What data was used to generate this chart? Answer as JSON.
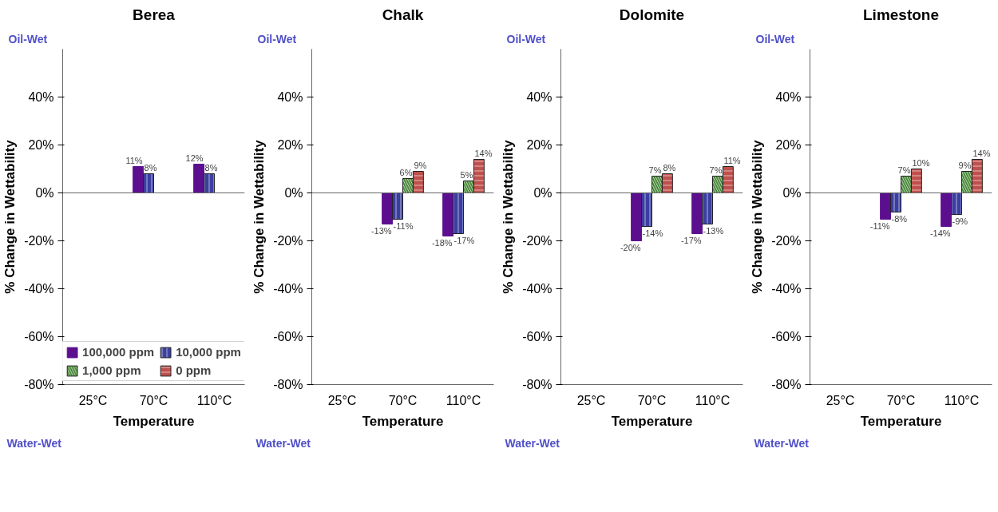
{
  "chart_data": [
    {
      "type": "bar",
      "title": "Berea",
      "xlabel": "Temperature",
      "ylabel": "% Change in Wettability",
      "categories": [
        "25°C",
        "70°C",
        "110°C"
      ],
      "series": [
        {
          "name": "100,000 ppm",
          "color": "#5b0f8f",
          "values": [
            null,
            11,
            12
          ],
          "value_labels": [
            null,
            "11%",
            "12%"
          ]
        },
        {
          "name": "10,000 ppm",
          "color": "#3b3fa0",
          "values": [
            null,
            8,
            8
          ],
          "value_labels": [
            null,
            "8%",
            "8%"
          ]
        },
        {
          "name": "1,000 ppm",
          "color": "#4a8a3a",
          "values": [
            null,
            null,
            null
          ]
        },
        {
          "name": "0 ppm",
          "color": "#c0504d",
          "values": [
            null,
            null,
            null
          ]
        }
      ],
      "ylim": [
        -80,
        60
      ],
      "yticks": [
        {
          "value": -80,
          "label": "-80%"
        },
        {
          "value": -60,
          "label": "-60%"
        },
        {
          "value": -40,
          "label": "-40%"
        },
        {
          "value": -20,
          "label": "-20%"
        },
        {
          "value": 0,
          "label": "0%"
        },
        {
          "value": 20,
          "label": "20%"
        },
        {
          "value": 40,
          "label": "40%"
        }
      ],
      "ref_lines": [
        {
          "axis": "y",
          "value": 0
        }
      ],
      "annotations": [
        "Oil-Wet",
        "Water-Wet"
      ],
      "legend": "bottom"
    },
    {
      "type": "bar",
      "title": "Chalk",
      "xlabel": "Temperature",
      "ylabel": "% Change in Wettability",
      "categories": [
        "25°C",
        "70°C",
        "110°C"
      ],
      "series": [
        {
          "color": "#5b0f8f",
          "values": [
            null,
            -13,
            -18
          ],
          "value_labels": [
            null,
            "-13%",
            "-18%"
          ]
        },
        {
          "color": "#3b3fa0",
          "values": [
            null,
            -11,
            -17
          ],
          "value_labels": [
            null,
            "-11%",
            "-17%"
          ]
        },
        {
          "color": "#4a8a3a",
          "values": [
            null,
            6,
            5
          ],
          "value_labels": [
            null,
            "6%",
            "5%"
          ]
        },
        {
          "color": "#c0504d",
          "values": [
            null,
            9,
            14
          ],
          "value_labels": [
            null,
            "9%",
            "14%"
          ]
        }
      ],
      "ylim": [
        -80,
        60
      ],
      "yticks": [
        {
          "value": -80,
          "label": "-80%"
        },
        {
          "value": -60,
          "label": "-60%"
        },
        {
          "value": -40,
          "label": "-40%"
        },
        {
          "value": -20,
          "label": "-20%"
        },
        {
          "value": 0,
          "label": "0%"
        },
        {
          "value": 20,
          "label": "20%"
        },
        {
          "value": 40,
          "label": "40%"
        }
      ],
      "ref_lines": [
        {
          "axis": "y",
          "value": 0
        }
      ],
      "annotations": [
        "Oil-Wet",
        "Water-Wet"
      ]
    },
    {
      "type": "bar",
      "title": "Dolomite",
      "xlabel": "Temperature",
      "ylabel": "% Change in Wettability",
      "categories": [
        "25°C",
        "70°C",
        "110°C"
      ],
      "series": [
        {
          "color": "#5b0f8f",
          "values": [
            null,
            -20,
            -17
          ],
          "value_labels": [
            null,
            "-20%",
            "-17%"
          ]
        },
        {
          "color": "#3b3fa0",
          "values": [
            null,
            -14,
            -13
          ],
          "value_labels": [
            null,
            "-14%",
            "-13%"
          ]
        },
        {
          "color": "#4a8a3a",
          "values": [
            null,
            7,
            7
          ],
          "value_labels": [
            null,
            "7%",
            "7%"
          ]
        },
        {
          "color": "#c0504d",
          "values": [
            null,
            8,
            11
          ],
          "value_labels": [
            null,
            "8%",
            "11%"
          ]
        }
      ],
      "ylim": [
        -80,
        60
      ],
      "yticks": [
        {
          "value": -80,
          "label": "-80%"
        },
        {
          "value": -60,
          "label": "-60%"
        },
        {
          "value": -40,
          "label": "-40%"
        },
        {
          "value": -20,
          "label": "-20%"
        },
        {
          "value": 0,
          "label": "0%"
        },
        {
          "value": 20,
          "label": "20%"
        },
        {
          "value": 40,
          "label": "40%"
        }
      ],
      "ref_lines": [
        {
          "axis": "y",
          "value": 0
        }
      ],
      "annotations": [
        "Oil-Wet",
        "Water-Wet"
      ]
    },
    {
      "type": "bar",
      "title": "Limestone",
      "xlabel": "Temperature",
      "ylabel": "% Change in Wettability",
      "categories": [
        "25°C",
        "70°C",
        "110°C"
      ],
      "series": [
        {
          "color": "#5b0f8f",
          "values": [
            null,
            -11,
            -14
          ],
          "value_labels": [
            null,
            "-11%",
            "-14%"
          ]
        },
        {
          "color": "#3b3fa0",
          "values": [
            null,
            -8,
            -9
          ],
          "value_labels": [
            null,
            "-8%",
            "-9%"
          ]
        },
        {
          "color": "#4a8a3a",
          "values": [
            null,
            7,
            9
          ],
          "value_labels": [
            null,
            "7%",
            "9%"
          ]
        },
        {
          "color": "#c0504d",
          "values": [
            null,
            10,
            14
          ],
          "value_labels": [
            null,
            "10%",
            "14%"
          ]
        }
      ],
      "ylim": [
        -80,
        60
      ],
      "yticks": [
        {
          "value": -80,
          "label": "-80%"
        },
        {
          "value": -60,
          "label": "-60%"
        },
        {
          "value": -40,
          "label": "-40%"
        },
        {
          "value": -20,
          "label": "-20%"
        },
        {
          "value": 0,
          "label": "0%"
        },
        {
          "value": 20,
          "label": "20%"
        },
        {
          "value": 40,
          "label": "40%"
        }
      ],
      "ref_lines": [
        {
          "axis": "y",
          "value": 0
        }
      ],
      "annotations": [
        "Oil-Wet",
        "Water-Wet"
      ]
    }
  ]
}
